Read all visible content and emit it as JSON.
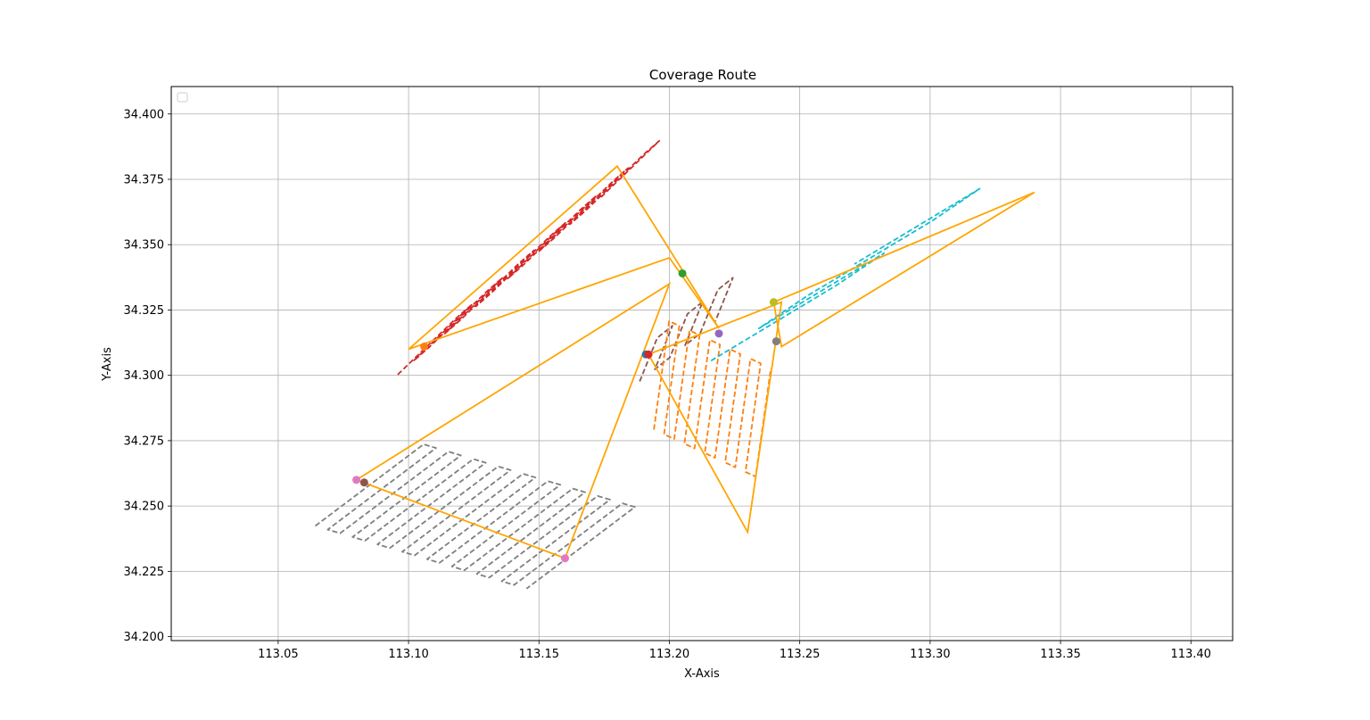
{
  "chart_data": {
    "type": "line",
    "title": "Coverage Route",
    "xlabel": "X-Axis",
    "ylabel": "Y-Axis",
    "xlim": [
      113.009,
      113.416
    ],
    "ylim": [
      34.1985,
      34.4105
    ],
    "xticks": [
      113.05,
      113.1,
      113.15,
      113.2,
      113.25,
      113.3,
      113.35,
      113.4
    ],
    "xtick_labels": [
      "113.05",
      "113.10",
      "113.15",
      "113.20",
      "113.25",
      "113.30",
      "113.35",
      "113.40"
    ],
    "yticks": [
      34.2,
      34.225,
      34.25,
      34.275,
      34.3,
      34.325,
      34.35,
      34.375,
      34.4
    ],
    "ytick_labels": [
      "34.200",
      "34.225",
      "34.250",
      "34.275",
      "34.300",
      "34.325",
      "34.350",
      "34.375",
      "34.400"
    ],
    "grid": true,
    "legend": {
      "placement": "top-left",
      "entries": []
    },
    "boundary_color": "#ffa500",
    "boundary_polygons": [
      {
        "points": [
          [
            113.1,
            34.31
          ],
          [
            113.18,
            34.38
          ],
          [
            113.219,
            34.318
          ],
          [
            113.2,
            34.345
          ],
          [
            113.1,
            34.31
          ]
        ]
      },
      {
        "points": [
          [
            113.08,
            34.26
          ],
          [
            113.2,
            34.335
          ],
          [
            113.16,
            34.23
          ],
          [
            113.08,
            34.26
          ]
        ]
      },
      {
        "points": [
          [
            113.192,
            34.308
          ],
          [
            113.243,
            34.328
          ],
          [
            113.23,
            34.24
          ],
          [
            113.192,
            34.308
          ]
        ]
      },
      {
        "points": [
          [
            113.24,
            34.328
          ],
          [
            113.34,
            34.37
          ],
          [
            113.243,
            34.311
          ],
          [
            113.24,
            34.328
          ]
        ]
      }
    ],
    "sweep_series": [
      {
        "color": "#d62728",
        "angle": 44,
        "from": [
          113.107,
          34.311
        ],
        "to": [
          113.185,
          34.379
        ],
        "count": 14,
        "half_len": 0.0155
      },
      {
        "color": "#7f7f7f",
        "angle": 37,
        "from": [
          113.085,
          34.258
        ],
        "to": [
          113.166,
          34.234
        ],
        "count": 18,
        "half_len": 0.026
      },
      {
        "color": "#8c564b",
        "angle": 68,
        "from": [
          113.192,
          34.306
        ],
        "to": [
          113.221,
          34.329
        ],
        "count": 6,
        "half_len": 0.009
      },
      {
        "color": "#ff7f0e",
        "angle": 82,
        "from": [
          113.197,
          34.3
        ],
        "to": [
          113.236,
          34.282
        ],
        "count": 11,
        "half_len": 0.021
      },
      {
        "color": "#17becf",
        "angle": 31,
        "from": [
          113.24,
          34.32
        ],
        "to": [
          113.295,
          34.357
        ],
        "count": 4,
        "half_len": 0.028
      }
    ],
    "markers": [
      {
        "x": 113.106,
        "y": 34.311,
        "color": "#ff7f0e"
      },
      {
        "x": 113.205,
        "y": 34.339,
        "color": "#2ca02c"
      },
      {
        "x": 113.08,
        "y": 34.26,
        "color": "#e377c2"
      },
      {
        "x": 113.083,
        "y": 34.259,
        "color": "#8c564b"
      },
      {
        "x": 113.16,
        "y": 34.23,
        "color": "#e377c2"
      },
      {
        "x": 113.191,
        "y": 34.308,
        "color": "#1f77b4"
      },
      {
        "x": 113.192,
        "y": 34.308,
        "color": "#d62728"
      },
      {
        "x": 113.219,
        "y": 34.316,
        "color": "#9467bd"
      },
      {
        "x": 113.24,
        "y": 34.328,
        "color": "#bcbd22"
      },
      {
        "x": 113.241,
        "y": 34.313,
        "color": "#7f7f7f"
      }
    ]
  }
}
